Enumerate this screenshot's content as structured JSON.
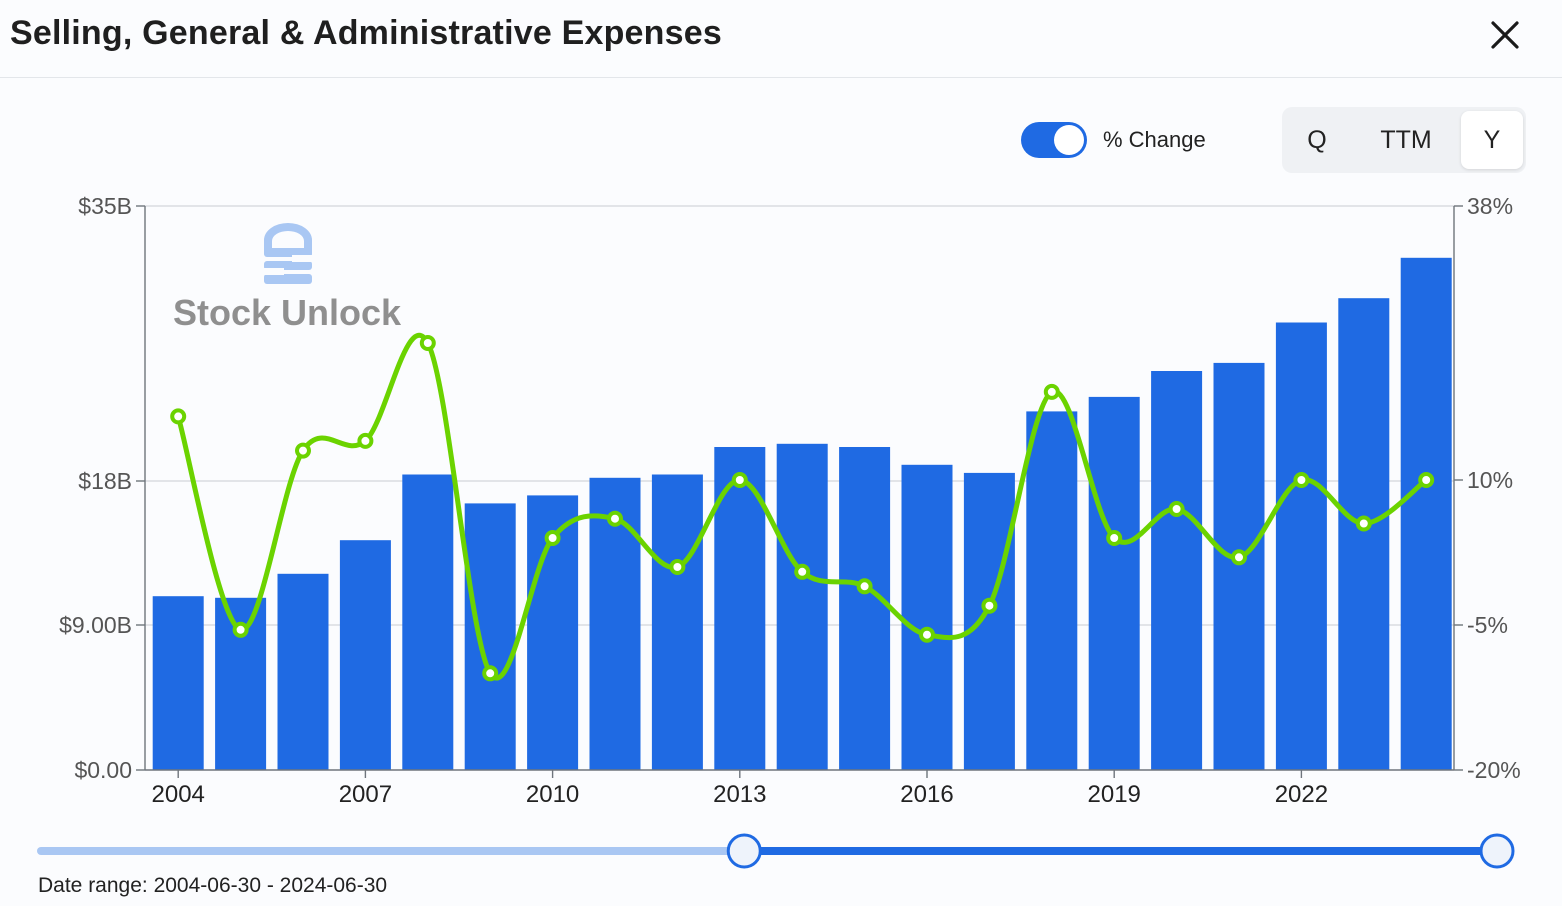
{
  "header": {
    "title": "Selling, General & Administrative Expenses",
    "close_icon": "close-icon"
  },
  "controls": {
    "toggle_label": "% Change",
    "toggle_on": true,
    "periods": [
      "Q",
      "TTM",
      "Y"
    ],
    "active_period": "Y"
  },
  "watermark": {
    "text": "Stock Unlock",
    "icon": "stock-unlock-logo-icon"
  },
  "range": {
    "label": "Date range: 2004-06-30 - 2024-06-30",
    "start_fraction": 0.483,
    "end_fraction": 1.0
  },
  "colors": {
    "bar": "#1f6ae3",
    "line": "#6bd300",
    "accent": "#1f6ae3",
    "track_light": "#a9c7f3"
  },
  "chart_data": {
    "type": "bar",
    "x": [
      2004,
      2005,
      2006,
      2007,
      2008,
      2009,
      2010,
      2011,
      2012,
      2013,
      2014,
      2015,
      2016,
      2017,
      2018,
      2019,
      2020,
      2021,
      2022,
      2023,
      2024
    ],
    "x_tick_labels": [
      "2004",
      "2007",
      "2010",
      "2013",
      "2016",
      "2019",
      "2022"
    ],
    "series": [
      {
        "type": "bar",
        "axis": "left",
        "values": [
          10.8,
          10.7,
          12.2,
          14.3,
          18.4,
          16.6,
          17.1,
          18.2,
          18.4,
          20.1,
          20.3,
          20.1,
          19.0,
          18.5,
          22.3,
          23.2,
          24.8,
          25.3,
          27.8,
          29.3,
          31.8
        ]
      },
      {
        "type": "line",
        "axis": "right",
        "values": [
          16.5,
          -5.5,
          13.0,
          14.0,
          24.0,
          -10.0,
          4.0,
          6.0,
          1.0,
          10.0,
          0.5,
          -1.0,
          -6.0,
          -3.0,
          19.0,
          4.0,
          7.0,
          2.0,
          10.0,
          5.5,
          10.0
        ]
      }
    ],
    "y_left": {
      "ticks": [
        0,
        9,
        18,
        35
      ],
      "labels": [
        "$0.00",
        "$9.00B",
        "$18B",
        "$35B"
      ],
      "range": [
        0,
        35
      ]
    },
    "y_right": {
      "ticks": [
        -20,
        -5,
        10,
        38
      ],
      "labels": [
        "-20%",
        "-5%",
        "10%",
        "38%"
      ],
      "range": [
        -20,
        38
      ]
    },
    "grid": true
  }
}
